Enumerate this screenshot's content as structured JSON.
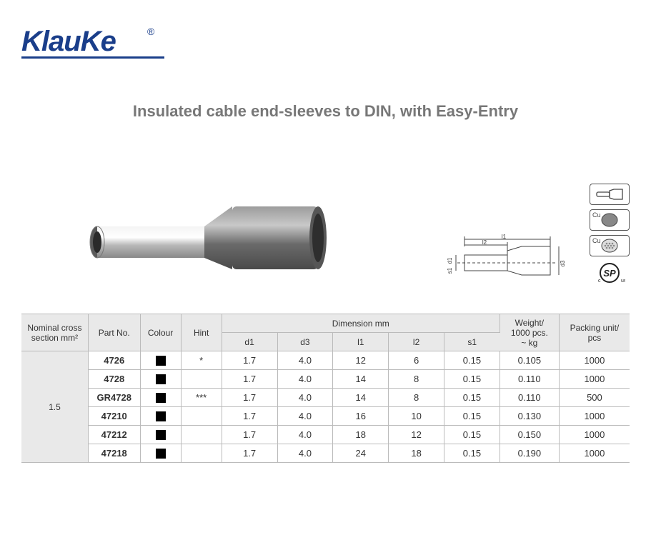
{
  "logo": {
    "text": "KlauKe",
    "registered_mark": "®",
    "color": "#1a3e8a"
  },
  "title": "Insulated cable end-sleeves to DIN, with Easy-Entry",
  "title_color": "#777777",
  "product_image": {
    "sleeve_color": "#6e6e6e",
    "ferrule_color_light": "#e8e8e8",
    "ferrule_color_dark": "#9a9a9a"
  },
  "diagram_labels": {
    "l1": "l1",
    "l2": "l2",
    "d1": "d1",
    "s1": "s1",
    "d3": "d3"
  },
  "icons": {
    "shape": "sleeve-shape-icon",
    "cu_solid": "Cu",
    "cu_stranded": "Cu",
    "csa": "SP"
  },
  "table": {
    "header_bg": "#e9e9e9",
    "border_color": "#bbbbbb",
    "columns": {
      "nominal": "Nominal cross\nsection mm²",
      "part_no": "Part No.",
      "colour": "Colour",
      "hint": "Hint",
      "dimension_group": "Dimension mm",
      "d1": "d1",
      "d3": "d3",
      "l1": "l1",
      "l2": "l2",
      "s1": "s1",
      "weight": "Weight/\n1000 pcs.\n~ kg",
      "packing": "Packing unit/\npcs"
    },
    "nominal_value": "1.5",
    "rows": [
      {
        "part_no": "4726",
        "colour": "#000000",
        "hint": "*",
        "d1": "1.7",
        "d3": "4.0",
        "l1": "12",
        "l2": "6",
        "s1": "0.15",
        "weight": "0.105",
        "packing": "1000"
      },
      {
        "part_no": "4728",
        "colour": "#000000",
        "hint": "",
        "d1": "1.7",
        "d3": "4.0",
        "l1": "14",
        "l2": "8",
        "s1": "0.15",
        "weight": "0.110",
        "packing": "1000"
      },
      {
        "part_no": "GR4728",
        "colour": "#000000",
        "hint": "***",
        "d1": "1.7",
        "d3": "4.0",
        "l1": "14",
        "l2": "8",
        "s1": "0.15",
        "weight": "0.110",
        "packing": "500"
      },
      {
        "part_no": "47210",
        "colour": "#000000",
        "hint": "",
        "d1": "1.7",
        "d3": "4.0",
        "l1": "16",
        "l2": "10",
        "s1": "0.15",
        "weight": "0.130",
        "packing": "1000"
      },
      {
        "part_no": "47212",
        "colour": "#000000",
        "hint": "",
        "d1": "1.7",
        "d3": "4.0",
        "l1": "18",
        "l2": "12",
        "s1": "0.15",
        "weight": "0.150",
        "packing": "1000"
      },
      {
        "part_no": "47218",
        "colour": "#000000",
        "hint": "",
        "d1": "1.7",
        "d3": "4.0",
        "l1": "24",
        "l2": "18",
        "s1": "0.15",
        "weight": "0.190",
        "packing": "1000"
      }
    ]
  }
}
